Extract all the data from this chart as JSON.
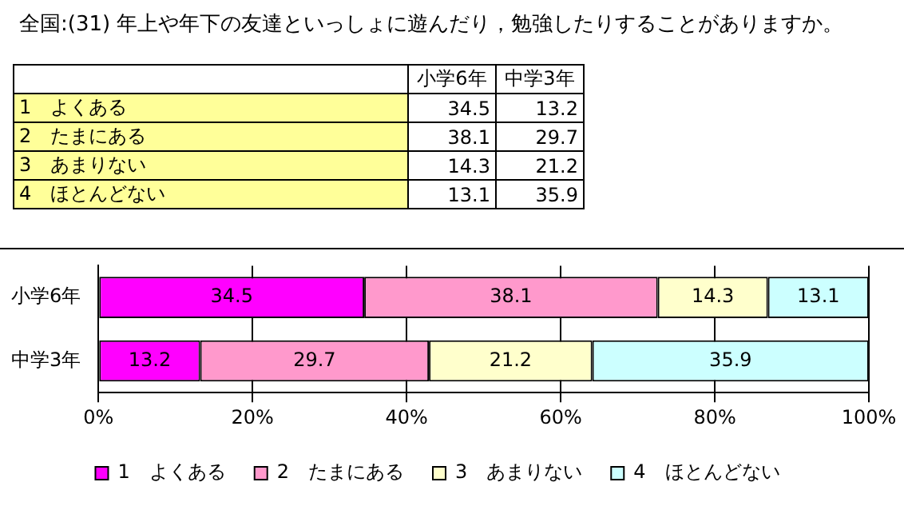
{
  "chart_data": {
    "type": "bar",
    "orientation": "horizontal",
    "stacked": true,
    "title": "全国:(31) 年上や年下の友達といっしょに遊んだり，勉強したりすることがありますか。",
    "annotations": [
      "小学6年",
      "中学3年",
      "1　よくある",
      "34.5",
      "13.2",
      "2　たまにある",
      "38.1",
      "29.7",
      "3　あまりない",
      "14.3",
      "21.2",
      "4　ほとんどない",
      "13.1",
      "35.9"
    ],
    "categories": [
      "小学6年",
      "中学3年"
    ],
    "series": [
      {
        "name": "1　よくある",
        "color": "#ff00ff",
        "values": [
          34.5,
          13.2
        ]
      },
      {
        "name": "2　たまにある",
        "color": "#ff99cc",
        "values": [
          38.1,
          29.7
        ]
      },
      {
        "name": "3　あまりない",
        "color": "#ffffcc",
        "values": [
          14.3,
          21.2
        ]
      },
      {
        "name": "4　ほとんどない",
        "color": "#ccffff",
        "values": [
          13.1,
          35.9
        ]
      }
    ],
    "xlim": [
      0,
      100
    ],
    "xticks": [
      {
        "value": 0,
        "label": "0%"
      },
      {
        "value": 20,
        "label": "20%"
      },
      {
        "value": 40,
        "label": "40%"
      },
      {
        "value": 60,
        "label": "60%"
      },
      {
        "value": 80,
        "label": "80%"
      },
      {
        "value": 100,
        "label": "100%"
      }
    ],
    "grid": "x",
    "legend": "bottom",
    "data_labels": true
  }
}
